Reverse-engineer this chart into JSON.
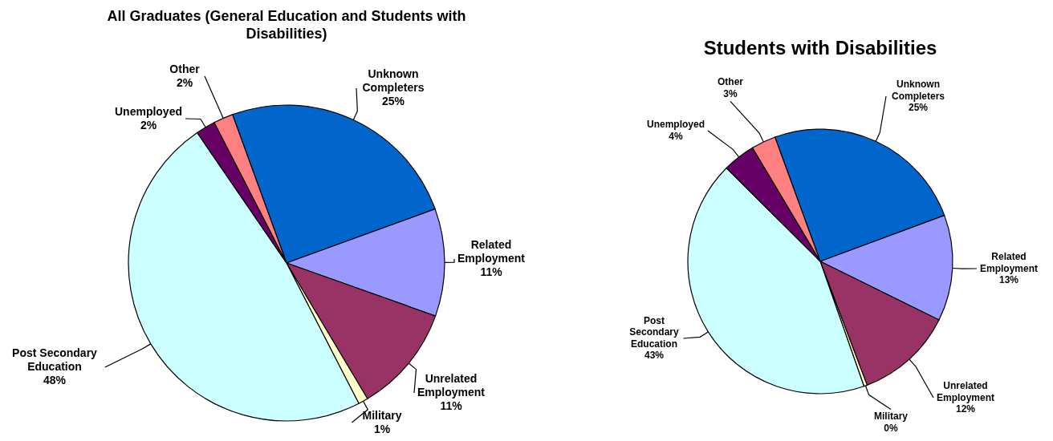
{
  "chart_data": [
    {
      "type": "pie",
      "title": "All Graduates (General Education and Students with Disabilities)",
      "categories": [
        "Unknown Completers",
        "Related Employment",
        "Unrelated Employment",
        "Military",
        "Post Secondary Education",
        "Unemployed",
        "Other"
      ],
      "values": [
        25,
        11,
        11,
        1,
        48,
        2,
        2
      ],
      "value_labels": [
        "25%",
        "11%",
        "11%",
        "1%",
        "48%",
        "2%",
        "2%"
      ],
      "colors": [
        "#0066cc",
        "#9999ff",
        "#993366",
        "#ffffcc",
        "#ccffff",
        "#660066",
        "#ff8080"
      ]
    },
    {
      "type": "pie",
      "title": "Students with Disabilities",
      "categories": [
        "Unknown Completers",
        "Related Employment",
        "Unrelated Employment",
        "Military",
        "Post Secondary Education",
        "Unemployed",
        "Other"
      ],
      "values": [
        25,
        13,
        12,
        0.4,
        43,
        4,
        3
      ],
      "value_labels": [
        "25%",
        "13%",
        "12%",
        "0%",
        "43%",
        "4%",
        "3%"
      ],
      "colors": [
        "#0066cc",
        "#9999ff",
        "#993366",
        "#ffffcc",
        "#ccffff",
        "#660066",
        "#ff8080"
      ]
    }
  ]
}
